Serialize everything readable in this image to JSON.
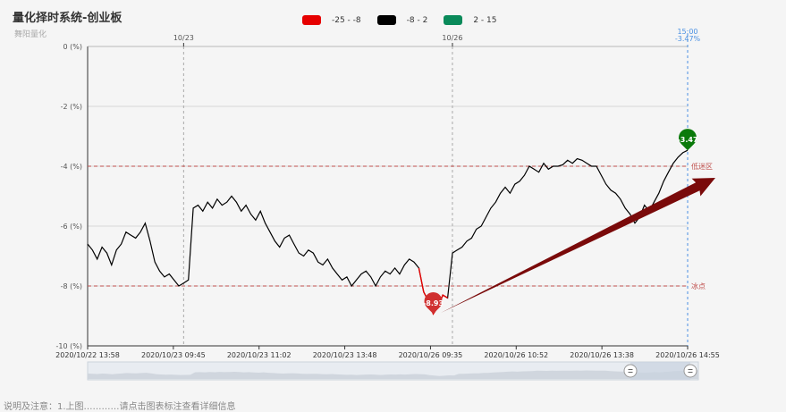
{
  "title": "量化择时系统-创业板",
  "subtitle": "舞阳量化",
  "legend": [
    {
      "label": "-25 - -8",
      "color": "#e60000"
    },
    {
      "label": "-8 - 2",
      "color": "#000000"
    },
    {
      "label": "2 - 15",
      "color": "#0a8a5a"
    }
  ],
  "chart_data": {
    "type": "line",
    "yunit": "(%)",
    "ylim": [
      -10,
      0
    ],
    "yticks": [
      "0 (%)",
      "-2 (%)",
      "-4 (%)",
      "-6 (%)",
      "-8 (%)",
      "-10 (%)"
    ],
    "x_tick_labels": [
      "2020/10/22 13:58",
      "2020/10/23 09:45",
      "2020/10/23 11:02",
      "2020/10/23 13:48",
      "2020/10/26 09:35",
      "2020/10/26 10:52",
      "2020/10/26 13:38",
      "2020/10/26 14:55"
    ],
    "day_markers": [
      "10/23",
      "10/26"
    ],
    "cursor": {
      "time": "15:00",
      "value": "-3.47%"
    },
    "mark_lines": [
      {
        "value": -4,
        "label": "低迷区",
        "color": "#c0504d"
      },
      {
        "value": -8,
        "label": "冰点",
        "color": "#c0504d"
      }
    ],
    "mark_points": [
      {
        "label": "-8.93",
        "value": -8.93,
        "type": "min",
        "color": "#d03030"
      },
      {
        "label": "-3.47",
        "value": -3.47,
        "type": "last",
        "color": "#0a7a0a"
      }
    ],
    "series": [
      {
        "values": [
          -6.6,
          -6.8,
          -7.1,
          -6.7,
          -6.9,
          -7.3,
          -6.8,
          -6.6,
          -6.2,
          -6.3,
          -6.4,
          -6.2,
          -5.9,
          -6.5,
          -7.2,
          -7.5,
          -7.7,
          -7.6,
          -7.8,
          -8.0,
          -7.9,
          -7.8,
          -5.4,
          -5.3,
          -5.5,
          -5.2,
          -5.4,
          -5.1,
          -5.3,
          -5.2,
          -5.0,
          -5.2,
          -5.5,
          -5.3,
          -5.6,
          -5.8,
          -5.5,
          -5.9,
          -6.2,
          -6.5,
          -6.7,
          -6.4,
          -6.3,
          -6.6,
          -6.9,
          -7.0,
          -6.8,
          -6.9,
          -7.2,
          -7.3,
          -7.1,
          -7.4,
          -7.6,
          -7.8,
          -7.7,
          -8.0,
          -7.8,
          -7.6,
          -7.5,
          -7.7,
          -8.0,
          -7.7,
          -7.5,
          -7.6,
          -7.4,
          -7.6,
          -7.3,
          -7.1,
          -7.2,
          -7.4,
          -8.2,
          -8.5,
          -8.93,
          -8.7,
          -8.3,
          -8.4,
          -6.9,
          -6.8,
          -6.7,
          -6.5,
          -6.4,
          -6.1,
          -6.0,
          -5.7,
          -5.4,
          -5.2,
          -4.9,
          -4.7,
          -4.9,
          -4.6,
          -4.5,
          -4.3,
          -4.0,
          -4.1,
          -4.2,
          -3.9,
          -4.1,
          -4.0,
          -4.0,
          -3.95,
          -3.8,
          -3.9,
          -3.75,
          -3.8,
          -3.9,
          -4.0,
          -4.0,
          -4.3,
          -4.6,
          -4.8,
          -4.9,
          -5.1,
          -5.4,
          -5.6,
          -5.9,
          -5.7,
          -5.3,
          -5.5,
          -5.2,
          -4.9,
          -4.5,
          -4.2,
          -3.9,
          -3.7,
          -3.55,
          -3.47
        ]
      }
    ]
  },
  "arrow_color": "#7a0a0a",
  "bottom_text": "说明及注意：1.上图…………请点击图表标注查看详细信息"
}
